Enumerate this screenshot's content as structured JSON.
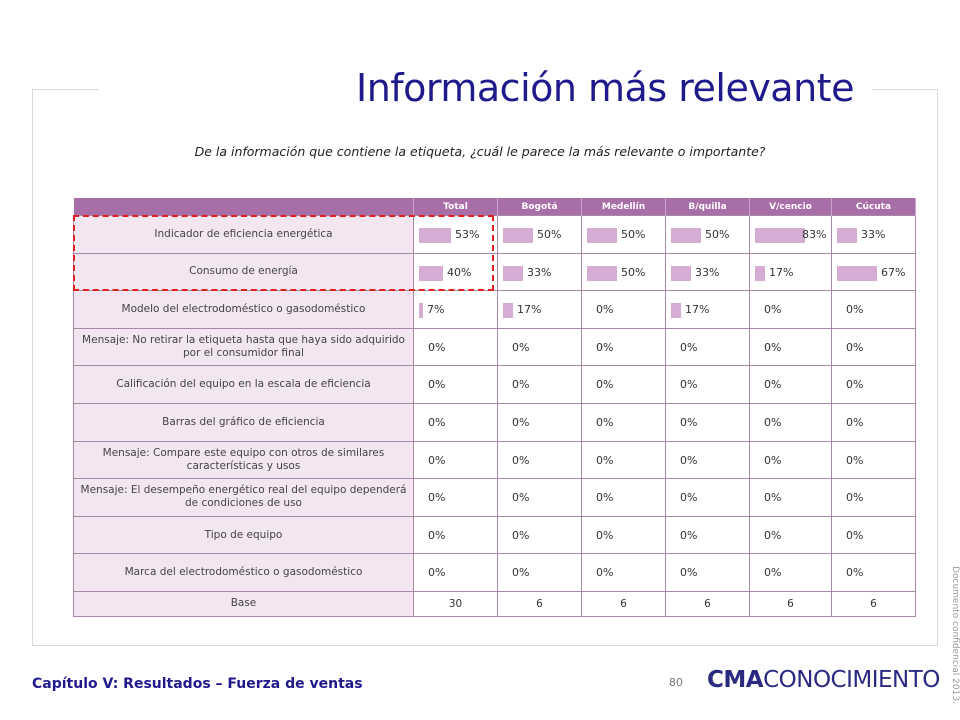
{
  "title": "Información más relevante",
  "question": "De la información que contiene la etiqueta, ¿cuál le parece la más relevante o importante?",
  "columns": [
    "Total",
    "Bogotá",
    "Medellín",
    "B/quilla",
    "V/cencio",
    "Cúcuta"
  ],
  "rows": [
    {
      "label": "Indicador de eficiencia energética",
      "values": [
        "53%",
        "50%",
        "50%",
        "50%",
        "83%",
        "33%"
      ],
      "fractions": [
        0.53,
        0.5,
        0.5,
        0.5,
        0.83,
        0.33
      ]
    },
    {
      "label": "Consumo de energía",
      "values": [
        "40%",
        "33%",
        "50%",
        "33%",
        "17%",
        "67%"
      ],
      "fractions": [
        0.4,
        0.33,
        0.5,
        0.33,
        0.17,
        0.67
      ]
    },
    {
      "label": "Modelo del electrodoméstico  o gasodoméstico",
      "values": [
        "7%",
        "17%",
        "0%",
        "17%",
        "0%",
        "0%"
      ],
      "fractions": [
        0.07,
        0.17,
        0,
        0.17,
        0,
        0
      ]
    },
    {
      "label": "Mensaje: No retirar la etiqueta  hasta que haya sido adquirido por el consumidor final",
      "values": [
        "0%",
        "0%",
        "0%",
        "0%",
        "0%",
        "0%"
      ],
      "fractions": [
        0,
        0,
        0,
        0,
        0,
        0
      ]
    },
    {
      "label": "Calificación del equipo en la escala de eficiencia",
      "values": [
        "0%",
        "0%",
        "0%",
        "0%",
        "0%",
        "0%"
      ],
      "fractions": [
        0,
        0,
        0,
        0,
        0,
        0
      ]
    },
    {
      "label": "Barras del gráfico de eficiencia",
      "values": [
        "0%",
        "0%",
        "0%",
        "0%",
        "0%",
        "0%"
      ],
      "fractions": [
        0,
        0,
        0,
        0,
        0,
        0
      ]
    },
    {
      "label": "Mensaje: Compare este equipo con otros de similares características  y usos",
      "values": [
        "0%",
        "0%",
        "0%",
        "0%",
        "0%",
        "0%"
      ],
      "fractions": [
        0,
        0,
        0,
        0,
        0,
        0
      ]
    },
    {
      "label": "Mensaje: El desempeño energético real del equipo dependerá  de condiciones de uso",
      "values": [
        "0%",
        "0%",
        "0%",
        "0%",
        "0%",
        "0%"
      ],
      "fractions": [
        0,
        0,
        0,
        0,
        0,
        0
      ]
    },
    {
      "label": "Tipo de equipo",
      "values": [
        "0%",
        "0%",
        "0%",
        "0%",
        "0%",
        "0%"
      ],
      "fractions": [
        0,
        0,
        0,
        0,
        0,
        0
      ]
    },
    {
      "label": "Marca del electrodoméstico  o gasodoméstico",
      "values": [
        "0%",
        "0%",
        "0%",
        "0%",
        "0%",
        "0%"
      ],
      "fractions": [
        0,
        0,
        0,
        0,
        0,
        0
      ]
    }
  ],
  "base": {
    "label": "Base",
    "values": [
      "30",
      "6",
      "6",
      "6",
      "6",
      "6"
    ]
  },
  "footer": {
    "chapter": "Capítulo V: Resultados – Fuerza de ventas",
    "page": "80",
    "logo_bold": "CMA",
    "logo_rest": "CONOCIMIENTO",
    "confidential": "Documento confidencial 2013."
  },
  "colors": {
    "title": "#1f1a8c",
    "header_bg": "#a86ea8",
    "label_bg": "#f3e6f0",
    "bar": "#d6acd2",
    "highlight": "#e02020"
  }
}
